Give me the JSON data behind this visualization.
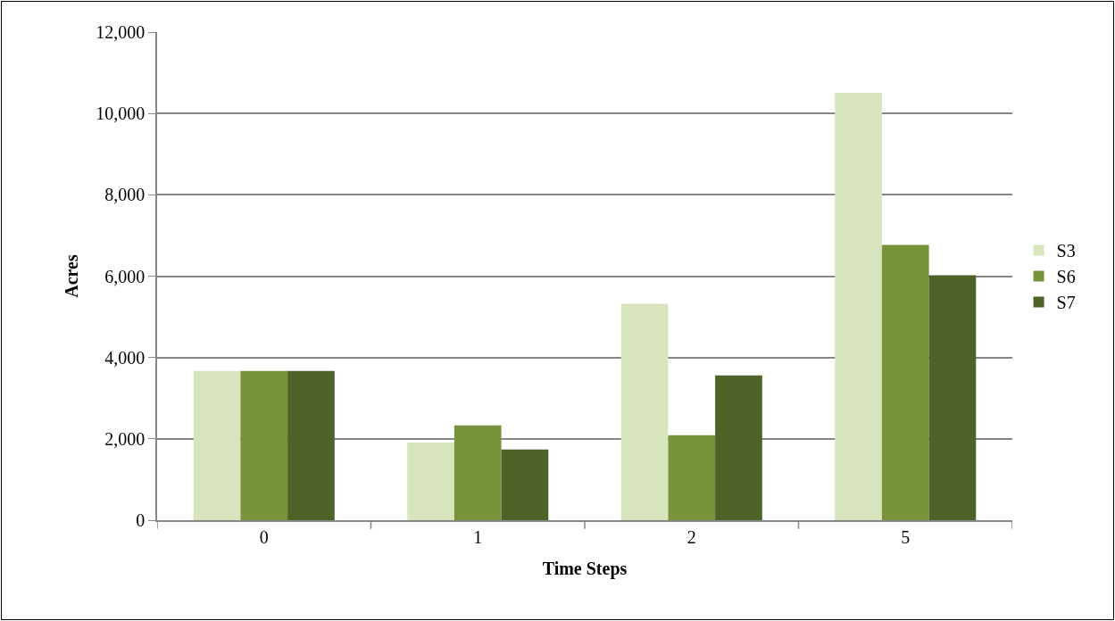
{
  "chart_data": {
    "type": "bar",
    "xlabel": "Time Steps",
    "ylabel": "Acres",
    "categories": [
      "0",
      "1",
      "2",
      "5"
    ],
    "series": [
      {
        "name": "S3",
        "color": "#d8e4bc",
        "values": [
          3670,
          1910,
          5320,
          10510
        ]
      },
      {
        "name": "S6",
        "color": "#77933c",
        "values": [
          3670,
          2330,
          2090,
          6770
        ]
      },
      {
        "name": "S7",
        "color": "#4f6228",
        "values": [
          3670,
          1740,
          3560,
          6020
        ]
      }
    ],
    "ylim": [
      0,
      12000
    ],
    "yticks": [
      {
        "value": 0,
        "label": "0"
      },
      {
        "value": 2000,
        "label": "2,000"
      },
      {
        "value": 4000,
        "label": "4,000"
      },
      {
        "value": 6000,
        "label": "6,000"
      },
      {
        "value": 8000,
        "label": "8,000"
      },
      {
        "value": 10000,
        "label": "10,000"
      },
      {
        "value": 12000,
        "label": "12,000"
      }
    ],
    "grid": "y",
    "legend": "right"
  }
}
